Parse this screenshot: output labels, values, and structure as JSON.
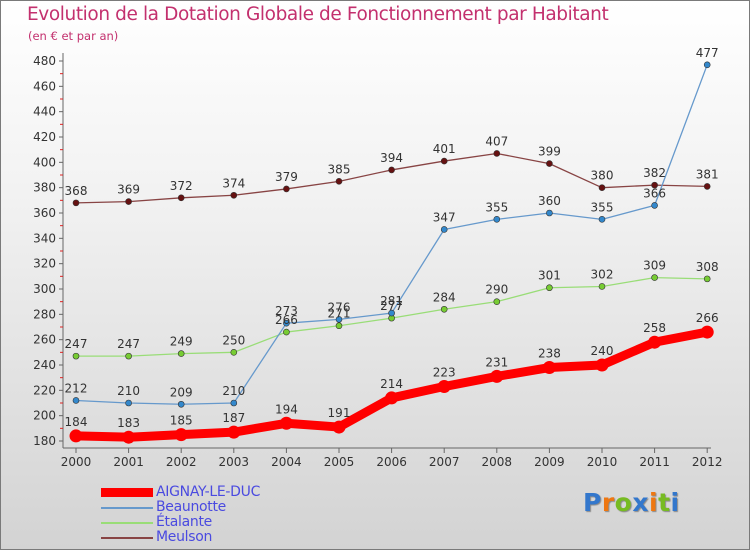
{
  "header": {
    "title": "Evolution de la Dotation Globale de Fonctionnement par Habitant",
    "subtitle": "(en € et par an)"
  },
  "chart_data": {
    "type": "line",
    "title": "Evolution de la Dotation Globale de Fonctionnement par Habitant",
    "subtitle": "(en € et par an)",
    "xlabel": "",
    "ylabel": "",
    "x": [
      "2000",
      "2001",
      "2002",
      "2003",
      "2004",
      "2005",
      "2006",
      "2007",
      "2008",
      "2009",
      "2010",
      "2011",
      "2012"
    ],
    "ylim": [
      180,
      480
    ],
    "yticks": [
      180,
      200,
      220,
      240,
      260,
      280,
      300,
      320,
      340,
      360,
      380,
      400,
      420,
      440,
      460,
      480
    ],
    "grid": false,
    "legend_position": "bottom-left",
    "series": [
      {
        "name": "AIGNAY-LE-DUC",
        "color": "#ff0000",
        "marker": "#ff0000",
        "values": [
          184,
          183,
          185,
          187,
          194,
          191,
          214,
          223,
          231,
          238,
          240,
          258,
          266
        ]
      },
      {
        "name": "Beaunotte",
        "color": "#6699cc",
        "marker": "#3388cc",
        "values": [
          212,
          210,
          209,
          210,
          273,
          276,
          281,
          347,
          355,
          360,
          355,
          366,
          477
        ]
      },
      {
        "name": "Étalante",
        "color": "#99dd77",
        "marker": "#77cc33",
        "values": [
          247,
          247,
          249,
          250,
          266,
          271,
          277,
          284,
          290,
          301,
          302,
          309,
          308
        ]
      },
      {
        "name": "Meulson",
        "color": "#884444",
        "marker": "#661111",
        "values": [
          368,
          369,
          372,
          374,
          379,
          385,
          394,
          401,
          407,
          399,
          380,
          382,
          381
        ]
      }
    ]
  },
  "logo": {
    "letters": [
      {
        "char": "P",
        "color": "#3377cc"
      },
      {
        "char": "r",
        "color": "#ee7711"
      },
      {
        "char": "o",
        "color": "#77bb22"
      },
      {
        "char": "x",
        "color": "#3377cc"
      },
      {
        "char": "i",
        "color": "#ee7711"
      },
      {
        "char": "t",
        "color": "#77bb22"
      },
      {
        "char": "i",
        "color": "#3377cc"
      }
    ]
  }
}
